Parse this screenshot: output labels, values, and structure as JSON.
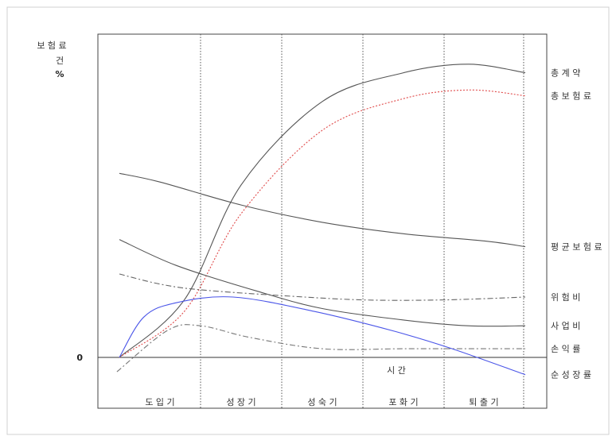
{
  "chart_data": {
    "type": "line",
    "y_axis_label_lines": [
      "보 험 료",
      "건",
      "%"
    ],
    "y_zero_tick": "0",
    "x_axis_label": "시  간",
    "x_domain": [
      0,
      5
    ],
    "y_range": [
      -1,
      10
    ],
    "stages": [
      "도 입 기",
      "성 장 기",
      "성 숙 기",
      "포 화 기",
      "퇴 출 기"
    ],
    "stage_boundaries": [
      1,
      2,
      3,
      4,
      4.98
    ],
    "series": [
      {
        "name": "총 계 약",
        "color": "#555555",
        "style": "solid",
        "x": [
          0,
          0.8,
          1.5,
          2.5,
          3.5,
          4.3,
          5
        ],
        "y": [
          0,
          2.0,
          6.0,
          8.9,
          9.9,
          10.2,
          9.9
        ]
      },
      {
        "name": "총 보 험 료",
        "color": "#e04a4a",
        "style": "dotted",
        "x": [
          0,
          0.8,
          1.5,
          2.5,
          3.5,
          4.3,
          5
        ],
        "y": [
          0,
          1.6,
          5.0,
          7.9,
          9.0,
          9.3,
          9.1
        ]
      },
      {
        "name": "평 균 보 험 료",
        "color": "#555555",
        "style": "solid",
        "x": [
          0,
          0.5,
          1.5,
          2.5,
          3.5,
          4.5,
          5
        ],
        "y": [
          6.4,
          6.1,
          5.3,
          4.7,
          4.3,
          4.05,
          3.85
        ]
      },
      {
        "name": "위 험 비",
        "color": "#666666",
        "style": "dashdot",
        "x": [
          0,
          0.5,
          1,
          2,
          3,
          4,
          5
        ],
        "y": [
          2.9,
          2.55,
          2.35,
          2.15,
          2.0,
          2.0,
          2.1
        ]
      },
      {
        "name": "사 업 비",
        "color": "#555555",
        "style": "solid",
        "x": [
          0,
          0.7,
          1.7,
          2.5,
          3.5,
          4.3,
          5
        ],
        "y": [
          4.1,
          3.2,
          2.3,
          1.7,
          1.3,
          1.1,
          1.1
        ]
      },
      {
        "name": "손 익 률",
        "color": "#777777",
        "style": "dashdot",
        "x": [
          -0.03,
          0.6,
          1.0,
          1.6,
          2.5,
          3.5,
          4.5,
          5
        ],
        "y": [
          -0.5,
          0.95,
          1.1,
          0.7,
          0.3,
          0.3,
          0.3,
          0.3
        ]
      },
      {
        "name": "순 성 장 률",
        "color": "#4a55e8",
        "style": "solid",
        "x": [
          0,
          0.3,
          0.7,
          1.4,
          2.4,
          3.4,
          4.1,
          5
        ],
        "y": [
          0,
          1.4,
          1.9,
          2.1,
          1.6,
          0.9,
          0.3,
          -0.6
        ]
      }
    ]
  }
}
